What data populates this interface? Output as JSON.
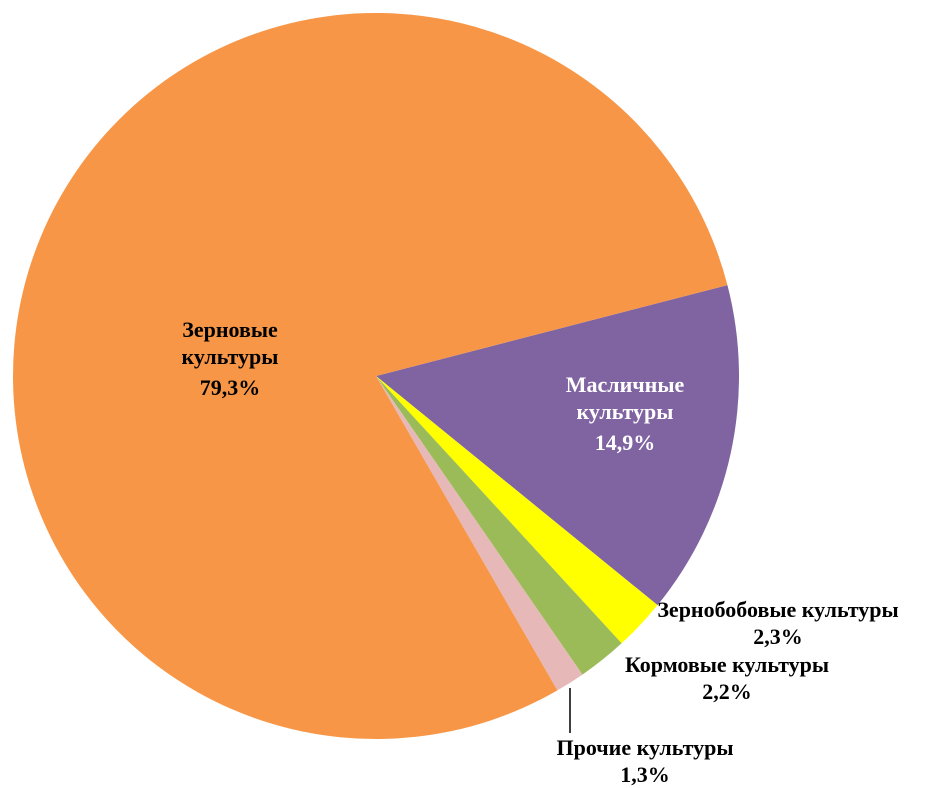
{
  "chart_data": {
    "type": "pie",
    "categories": [
      "Масличные культуры",
      "Зернобобовые культуры",
      "Кормовые культуры",
      "Прочие культуры",
      "Зерновые культуры"
    ],
    "values": [
      14.9,
      2.3,
      2.2,
      1.3,
      79.3
    ],
    "value_labels": [
      "14,9%",
      "2,3%",
      "2,2%",
      "1,3%",
      "79,3%"
    ],
    "colors": [
      "#8064a2",
      "#ffff00",
      "#9bbb59",
      "#e6b9b8",
      "#f79646"
    ]
  }
}
